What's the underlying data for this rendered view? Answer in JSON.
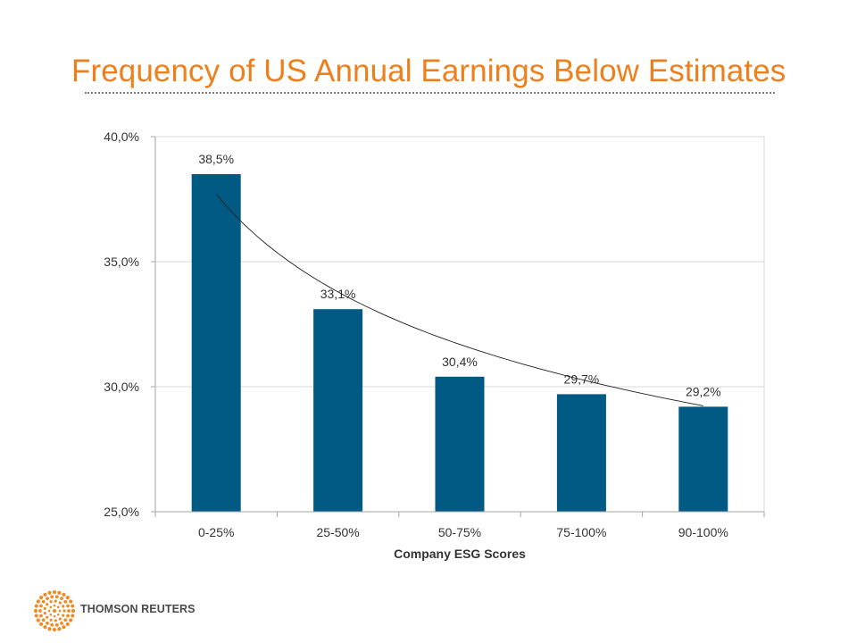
{
  "title": "Frequency of US Annual Earnings Below Estimates",
  "logo_text": "THOMSON REUTERS",
  "colors": {
    "title": "#ee7f1d",
    "bar": "#005a84",
    "grid": "#d9d9d9",
    "text": "#333333",
    "logo": "#f08a24"
  },
  "chart_data": {
    "type": "bar",
    "categories": [
      "0-25%",
      "25-50%",
      "50-75%",
      "75-100%",
      "90-100%"
    ],
    "values": [
      38.5,
      33.1,
      30.4,
      29.7,
      29.2
    ],
    "value_labels": [
      "38,5%",
      "33,1%",
      "30,4%",
      "29,7%",
      "29,2%"
    ],
    "xlabel": "Company ESG Scores",
    "ylabel": "",
    "ylim": [
      25,
      40
    ],
    "yticks": [
      25,
      30,
      35,
      40
    ],
    "ytick_labels": [
      "25,0%",
      "30,0%",
      "35,0%",
      "40,0%"
    ],
    "grid": true,
    "trendline": {
      "type": "power",
      "a": 37.7,
      "b": -0.158
    }
  }
}
